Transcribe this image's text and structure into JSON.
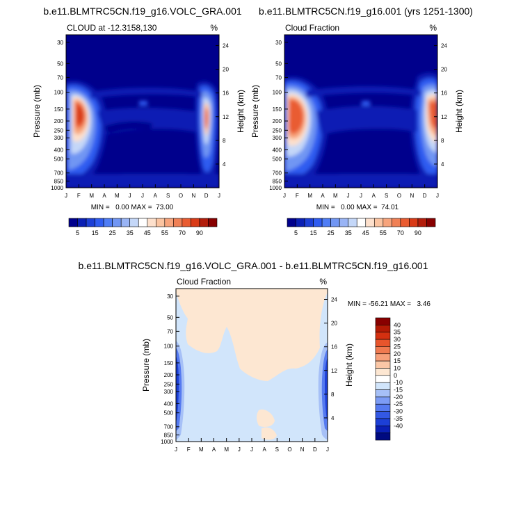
{
  "figure": {
    "panel_a": {
      "title": "b.e11.BLMTRC5CN.f19_g16.VOLC_GRA.001",
      "left_string": "CLOUD at -12.3158,130",
      "right_string": "%",
      "ylabel": "Pressure (mb)",
      "ylabel_right": "Height (km)",
      "stats": "MIN =   0.00 MAX =  73.00"
    },
    "panel_b": {
      "title": "b.e11.BLMTRC5CN.f19_g16.001 (yrs 1251-1300)",
      "left_string": "Cloud Fraction",
      "right_string": "%",
      "ylabel": "Pressure (mb)",
      "ylabel_right": "Height (km)",
      "stats": "MIN =   0.00 MAX =  74.01"
    },
    "panel_c": {
      "title": "b.e11.BLMTRC5CN.f19_g16.VOLC_GRA.001 - b.e11.BLMTRC5CN.f19_g16.001",
      "left_string": "Cloud Fraction",
      "right_string": "%",
      "ylabel": "Pressure (mb)",
      "ylabel_right": "Height (km)",
      "stats": "MIN = -56.21 MAX =   3.46"
    },
    "top_colorbar": {
      "colors": [
        "#00008c",
        "#0a1fb4",
        "#1c3fd6",
        "#2f5cf0",
        "#4f7df5",
        "#7196f3",
        "#99b4f5",
        "#c4d7f8",
        "#ffffff",
        "#fde0cc",
        "#fbc4a1",
        "#f7a47c",
        "#f08055",
        "#e95b30",
        "#d93a16",
        "#b31d0b",
        "#880000"
      ],
      "labels": [
        "5",
        "15",
        "25",
        "35",
        "45",
        "55",
        "70",
        "90"
      ]
    },
    "diff_colorbar": {
      "colors": [
        "#000a80",
        "#0a1fb4",
        "#1c3fd6",
        "#3358e4",
        "#557af0",
        "#7c9cf5",
        "#a6c0f7",
        "#d1e5fb",
        "#ffffff",
        "#fde7d2",
        "#fbc7a6",
        "#f7a07a",
        "#f07a50",
        "#e8552c",
        "#d43010",
        "#b31a05",
        "#880000"
      ],
      "labels": [
        "40",
        "35",
        "30",
        "25",
        "20",
        "15",
        "10",
        "0",
        "-10",
        "-15",
        "-20",
        "-25",
        "-30",
        "-35",
        "-40"
      ]
    }
  },
  "chart_data": [
    {
      "type": "heatmap",
      "title": "b.e11.BLMTRC5CN.f19_g16.VOLC_GRA.001",
      "subtitle": "CLOUD at -12.3158,130",
      "units": "%",
      "x_ticks": [
        "J",
        "F",
        "M",
        "A",
        "M",
        "J",
        "J",
        "A",
        "S",
        "O",
        "N",
        "D",
        "J"
      ],
      "y_pressure_ticks": [
        30,
        50,
        70,
        100,
        150,
        200,
        250,
        300,
        400,
        500,
        700,
        850,
        1000
      ],
      "y_height_ticks": [
        4,
        8,
        12,
        16,
        20,
        24
      ],
      "ylabel": "Pressure (mb)",
      "ylabel_right": "Height (km)",
      "ylim": [
        1000,
        25
      ],
      "y_scale": "log",
      "min": 0.0,
      "max": 73.0,
      "levels": [
        5,
        10,
        15,
        20,
        25,
        30,
        35,
        40,
        45,
        50,
        55,
        60,
        70,
        80,
        90
      ],
      "features": [
        {
          "x": "F",
          "pressure": 170,
          "value": 73
        },
        {
          "x": "D",
          "pressure": 170,
          "value": 55
        }
      ]
    },
    {
      "type": "heatmap",
      "title": "b.e11.BLMTRC5CN.f19_g16.001 (yrs 1251-1300)",
      "subtitle": "Cloud Fraction",
      "units": "%",
      "x_ticks": [
        "J",
        "F",
        "M",
        "A",
        "M",
        "J",
        "J",
        "A",
        "S",
        "O",
        "N",
        "D",
        "J"
      ],
      "y_pressure_ticks": [
        30,
        50,
        70,
        100,
        150,
        200,
        250,
        300,
        400,
        500,
        700,
        850,
        1000
      ],
      "y_height_ticks": [
        4,
        8,
        12,
        16,
        20,
        24
      ],
      "ylabel": "Pressure (mb)",
      "ylabel_right": "Height (km)",
      "ylim": [
        1000,
        25
      ],
      "y_scale": "log",
      "min": 0.0,
      "max": 74.01,
      "levels": [
        5,
        10,
        15,
        20,
        25,
        30,
        35,
        40,
        45,
        50,
        55,
        60,
        70,
        80,
        90
      ],
      "features": [
        {
          "x": "F",
          "pressure": 165,
          "value": 74
        },
        {
          "x": "J",
          "pressure": 165,
          "value": 65
        }
      ]
    },
    {
      "type": "heatmap",
      "title": "b.e11.BLMTRC5CN.f19_g16.VOLC_GRA.001 - b.e11.BLMTRC5CN.f19_g16.001",
      "subtitle": "Cloud Fraction",
      "units": "%",
      "x_ticks": [
        "J",
        "F",
        "M",
        "A",
        "M",
        "J",
        "J",
        "A",
        "S",
        "O",
        "N",
        "D",
        "J"
      ],
      "y_pressure_ticks": [
        30,
        50,
        70,
        100,
        150,
        200,
        250,
        300,
        400,
        500,
        700,
        850,
        1000
      ],
      "y_height_ticks": [
        4,
        8,
        12,
        16,
        20,
        24
      ],
      "ylabel": "Pressure (mb)",
      "ylabel_right": "Height (km)",
      "ylim": [
        1000,
        25
      ],
      "y_scale": "log",
      "min": -56.21,
      "max": 3.46,
      "levels": [
        -40,
        -35,
        -30,
        -25,
        -20,
        -15,
        -10,
        0,
        10,
        15,
        20,
        25,
        30,
        35,
        40
      ]
    }
  ]
}
